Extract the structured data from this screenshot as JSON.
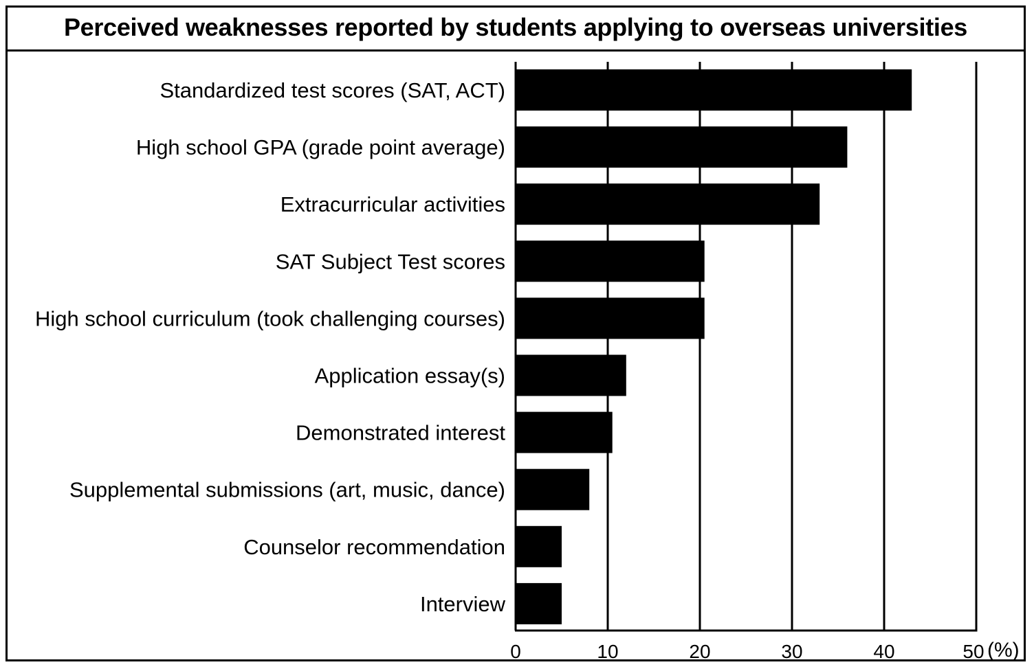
{
  "chart_data": {
    "type": "bar",
    "orientation": "horizontal",
    "title": "Perceived weaknesses reported by students applying to overseas universities",
    "categories": [
      "Standardized test scores (SAT, ACT)",
      "High school GPA (grade point average)",
      "Extracurricular activities",
      "SAT Subject Test scores",
      "High school curriculum (took challenging courses)",
      "Application essay(s)",
      "Demonstrated interest",
      "Supplemental submissions (art, music, dance)",
      "Counselor recommendation",
      "Interview"
    ],
    "values": [
      43,
      36,
      33,
      20.5,
      20.5,
      12,
      10.5,
      8,
      5,
      5
    ],
    "x_ticks": [
      "0",
      "10",
      "20",
      "30",
      "40",
      "50"
    ],
    "x_unit": "(%)",
    "xlim": [
      0,
      50
    ],
    "grid": true,
    "bar_color": "#000000"
  }
}
